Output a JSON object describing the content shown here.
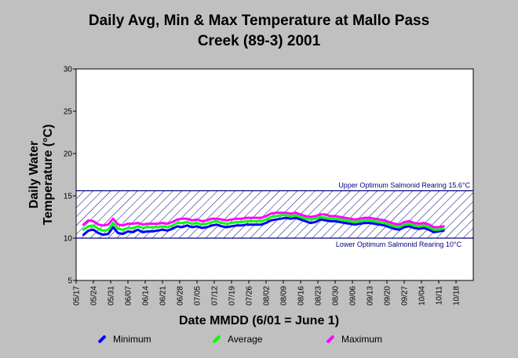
{
  "chart_data": {
    "type": "line",
    "title_line1": "Daily Avg, Min & Max Temperature at Mallo Pass",
    "title_line2": "Creek (89-3) 2001",
    "xlabel": "Date MMDD (6/01 = June 1)",
    "ylabel_line1": "Daily Water",
    "ylabel_line2": "Temperature (°C)",
    "ylim": [
      5,
      30
    ],
    "yticks": [
      5,
      10,
      15,
      20,
      25,
      30
    ],
    "xlim": [
      "05/17",
      "10/25"
    ],
    "xticks": [
      "05/17",
      "05/24",
      "05/31",
      "06/07",
      "06/14",
      "06/21",
      "06/28",
      "07/05",
      "07/12",
      "07/19",
      "07/26",
      "08/02",
      "08/09",
      "08/16",
      "08/23",
      "08/30",
      "09/06",
      "09/13",
      "09/20",
      "09/27",
      "10/04",
      "10/11",
      "10/18"
    ],
    "grid": false,
    "legend_position": "bottom",
    "upper_line": {
      "value": 15.6,
      "label": "Upper Optimum Salmonid Rearing 15.6°C"
    },
    "lower_line": {
      "value": 10,
      "label": "Lower Optimum Salmonid Rearing 10°C"
    },
    "colors": {
      "Minimum": "#0000ff",
      "Average": "#00ff00",
      "Maximum": "#ff00ff",
      "band": "#000080"
    },
    "x_dates": [
      "05/20",
      "05/22",
      "05/24",
      "05/26",
      "05/28",
      "05/30",
      "06/01",
      "06/03",
      "06/05",
      "06/07",
      "06/09",
      "06/11",
      "06/13",
      "06/15",
      "06/17",
      "06/19",
      "06/21",
      "06/23",
      "06/25",
      "06/27",
      "06/29",
      "07/01",
      "07/03",
      "07/05",
      "07/07",
      "07/09",
      "07/11",
      "07/13",
      "07/15",
      "07/17",
      "07/19",
      "07/21",
      "07/23",
      "07/25",
      "07/27",
      "07/29",
      "07/31",
      "08/02",
      "08/04",
      "08/06",
      "08/08",
      "08/10",
      "08/12",
      "08/14",
      "08/16",
      "08/18",
      "08/20",
      "08/22",
      "08/24",
      "08/26",
      "08/28",
      "08/30",
      "09/01",
      "09/03",
      "09/05",
      "09/07",
      "09/09",
      "09/11",
      "09/13",
      "09/15",
      "09/17",
      "09/19",
      "09/21",
      "09/23",
      "09/25",
      "09/27",
      "09/29",
      "10/01",
      "10/03",
      "10/05",
      "10/07",
      "10/09",
      "10/11",
      "10/13"
    ],
    "series": [
      {
        "name": "Minimum",
        "values": [
          10.4,
          10.9,
          11.0,
          10.6,
          10.4,
          10.5,
          11.3,
          10.6,
          10.5,
          10.8,
          10.7,
          11.0,
          10.7,
          10.8,
          10.8,
          10.9,
          11.0,
          10.9,
          11.1,
          11.4,
          11.3,
          11.5,
          11.3,
          11.4,
          11.2,
          11.3,
          11.5,
          11.6,
          11.4,
          11.3,
          11.4,
          11.5,
          11.5,
          11.6,
          11.6,
          11.6,
          11.6,
          11.8,
          12.1,
          12.2,
          12.3,
          12.4,
          12.3,
          12.4,
          12.2,
          12.0,
          11.8,
          11.9,
          12.2,
          12.1,
          12.0,
          12.0,
          11.9,
          11.8,
          11.7,
          11.6,
          11.7,
          11.8,
          11.8,
          11.7,
          11.6,
          11.5,
          11.3,
          11.1,
          11.0,
          11.3,
          11.4,
          11.2,
          11.1,
          11.2,
          11.0,
          10.7,
          10.8,
          10.9
        ]
      },
      {
        "name": "Average",
        "values": [
          11.0,
          11.4,
          11.5,
          11.1,
          10.9,
          11.0,
          11.8,
          11.1,
          11.0,
          11.2,
          11.2,
          11.4,
          11.2,
          11.3,
          11.3,
          11.3,
          11.4,
          11.3,
          11.5,
          11.8,
          11.8,
          11.9,
          11.7,
          11.8,
          11.6,
          11.7,
          11.9,
          12.0,
          11.8,
          11.7,
          11.8,
          11.9,
          11.9,
          12.0,
          12.0,
          12.0,
          12.0,
          12.2,
          12.5,
          12.6,
          12.7,
          12.7,
          12.6,
          12.7,
          12.5,
          12.3,
          12.2,
          12.3,
          12.5,
          12.4,
          12.3,
          12.3,
          12.2,
          12.1,
          12.0,
          11.9,
          12.0,
          12.1,
          12.1,
          12.0,
          11.9,
          11.8,
          11.6,
          11.4,
          11.3,
          11.6,
          11.7,
          11.5,
          11.4,
          11.5,
          11.3,
          11.0,
          11.0,
          11.1
        ]
      },
      {
        "name": "Maximum",
        "values": [
          11.6,
          12.1,
          12.0,
          11.6,
          11.5,
          11.6,
          12.3,
          11.6,
          11.5,
          11.7,
          11.7,
          11.8,
          11.6,
          11.7,
          11.7,
          11.7,
          11.8,
          11.7,
          11.9,
          12.2,
          12.3,
          12.3,
          12.1,
          12.2,
          12.0,
          12.1,
          12.3,
          12.3,
          12.2,
          12.1,
          12.2,
          12.3,
          12.3,
          12.4,
          12.4,
          12.4,
          12.4,
          12.6,
          12.9,
          13.0,
          13.0,
          13.0,
          12.9,
          13.0,
          12.8,
          12.6,
          12.5,
          12.6,
          12.8,
          12.8,
          12.6,
          12.6,
          12.5,
          12.4,
          12.3,
          12.2,
          12.3,
          12.4,
          12.4,
          12.3,
          12.2,
          12.1,
          11.9,
          11.7,
          11.6,
          11.9,
          12.0,
          11.8,
          11.7,
          11.8,
          11.6,
          11.3,
          11.3,
          11.4
        ]
      }
    ]
  }
}
